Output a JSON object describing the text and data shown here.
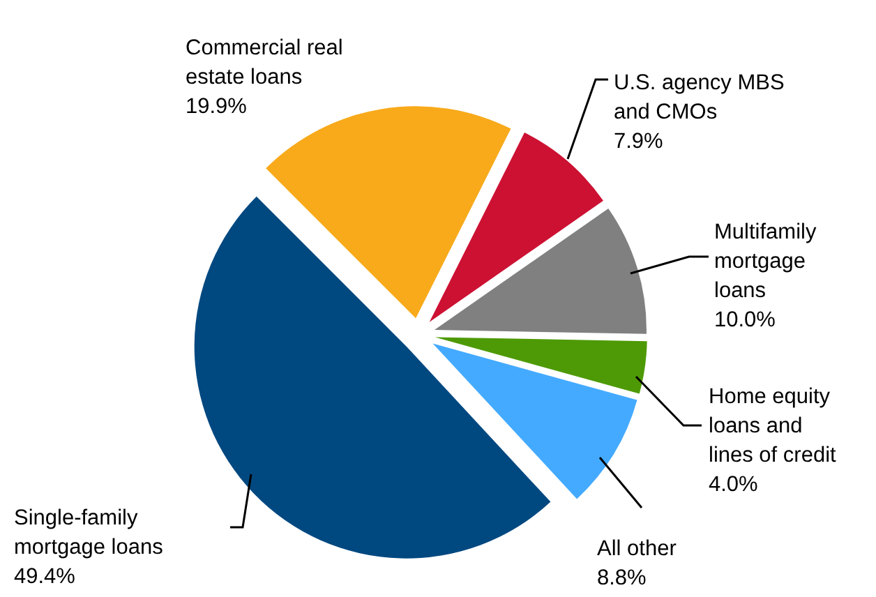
{
  "chart_data": {
    "type": "pie",
    "categories": [
      "Commercial real estate loans",
      "U.S. agency MBS and CMOs",
      "Multifamily mortgage loans",
      "Home equity loans and lines of credit",
      "All other",
      "Single-family mortgage loans"
    ],
    "values": [
      19.9,
      7.9,
      10.0,
      4.0,
      8.8,
      49.4
    ],
    "colors": [
      "#f8aa1b",
      "#cc1133",
      "#808080",
      "#4e9a06",
      "#44aaff",
      "#004880"
    ],
    "value_labels": [
      "19.9%",
      "7.9%",
      "10.0%",
      "4.0%",
      "8.8%",
      "49.4%"
    ],
    "legend": false
  }
}
